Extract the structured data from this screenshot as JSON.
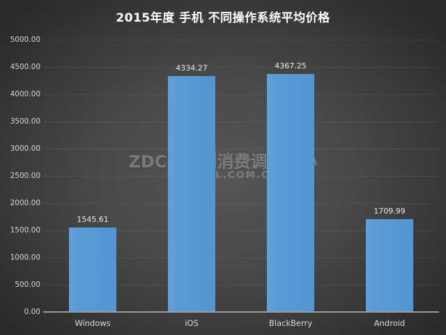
{
  "title": "2015年度 手机 不同操作系统平均价格",
  "watermark": {
    "line1": "ZDC互联网消费调研中心",
    "line2": "ZDC.ZOL.COM.CN"
  },
  "colors": {
    "bar": "#5b9bd5",
    "background_center": "#565656",
    "background_edge": "#2a2a2a",
    "axis_line": "#9b9b9b",
    "gridline": "rgba(255,255,255,0.08)",
    "tick_text": "#d9d9d9",
    "value_text": "#eaeaea",
    "title_text": "#ffffff"
  },
  "chart_data": {
    "type": "bar",
    "categories": [
      "Windows",
      "iOS",
      "BlackBerry",
      "Android"
    ],
    "values": [
      1545.61,
      4334.27,
      4367.25,
      1709.99
    ],
    "value_labels": [
      "1545.61",
      "4334.27",
      "4367.25",
      "1709.99"
    ],
    "title": "2015年度 手机 不同操作系统平均价格",
    "xlabel": "",
    "ylabel": "",
    "ylim": [
      0,
      5000
    ],
    "y_tick_step": 500,
    "y_tick_labels": [
      "0.00",
      "500.00",
      "1000.00",
      "1500.00",
      "2000.00",
      "2500.00",
      "3000.00",
      "3500.00",
      "4000.00",
      "4500.00",
      "5000.00"
    ],
    "grid": "horizontal",
    "legend": "none"
  }
}
